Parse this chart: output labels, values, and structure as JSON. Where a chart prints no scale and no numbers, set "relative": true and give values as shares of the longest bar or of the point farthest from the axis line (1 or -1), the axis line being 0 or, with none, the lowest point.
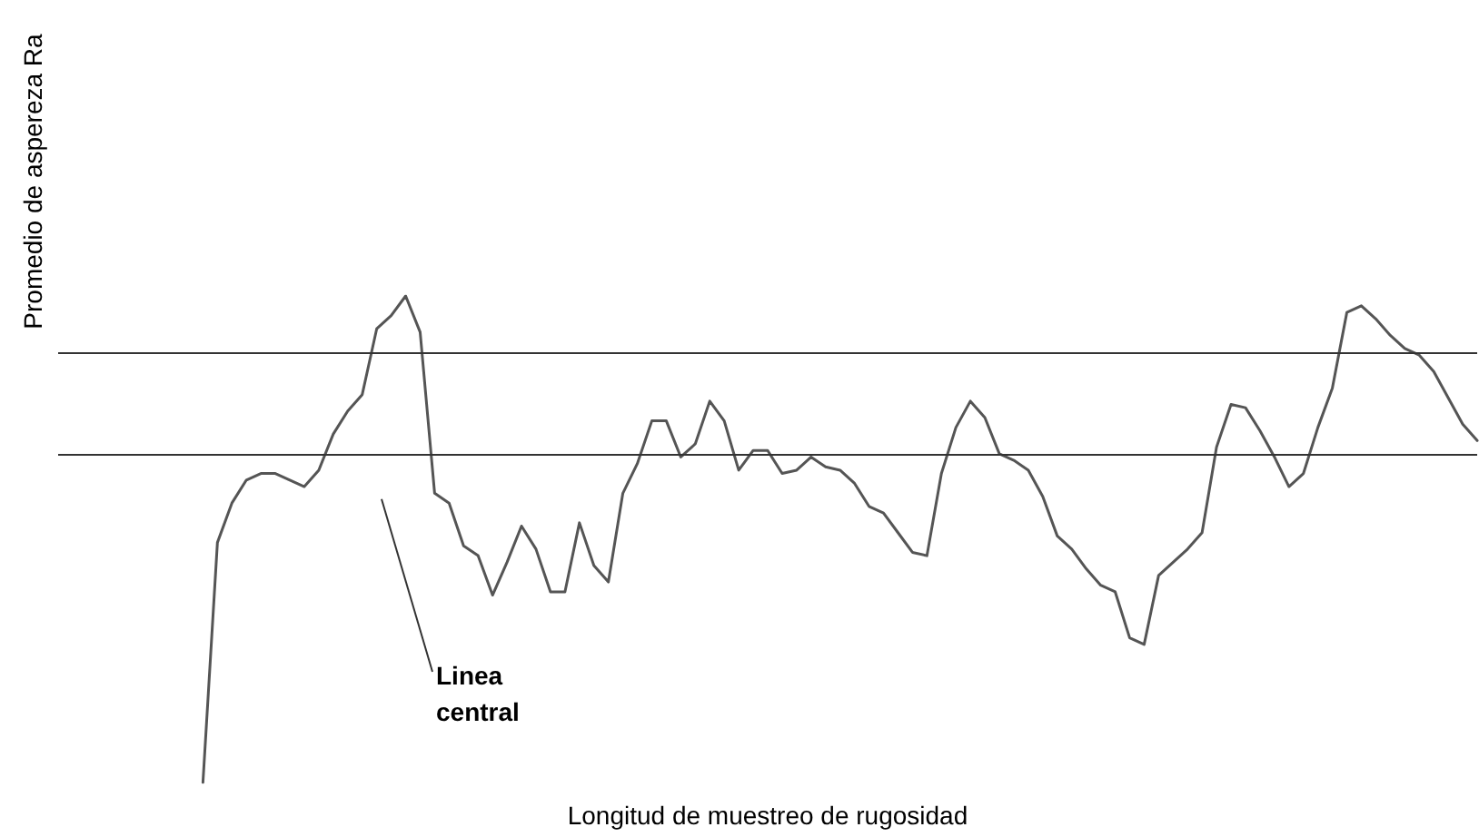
{
  "chart_data": {
    "type": "line",
    "relative": true,
    "xlabel": "Longitud de muestreo de rugosidad",
    "ylabel": "Promedio de aspereza Ra",
    "tick_labels": false,
    "annotations": [
      "Linea central"
    ],
    "line_style": "solid",
    "color": "#555555",
    "categories": [
      null,
      null,
      null,
      null,
      null,
      null,
      null,
      null,
      null,
      null,
      null,
      null,
      null,
      null,
      null,
      null,
      null,
      null,
      null,
      null,
      null,
      null,
      null,
      null,
      null,
      null,
      null,
      null,
      null,
      null,
      null,
      null,
      null,
      null,
      null,
      null,
      null,
      null,
      null,
      null,
      null,
      null,
      null,
      null,
      null,
      null,
      null,
      null,
      null,
      null,
      null,
      null,
      null,
      null,
      null,
      null,
      null,
      null,
      null,
      null,
      null,
      null,
      null,
      null,
      null,
      null,
      null,
      null,
      null,
      null,
      null,
      null,
      null,
      null,
      null,
      null,
      null,
      null,
      null,
      null,
      null,
      null,
      null,
      null,
      null,
      null,
      null,
      null,
      null,
      null,
      null,
      null,
      null,
      null,
      null,
      null,
      null,
      null,
      null
    ],
    "values": [
      null,
      null,
      null,
      null,
      null,
      null,
      null,
      null,
      null,
      null,
      -1,
      -0.27,
      -0.15,
      -0.08,
      -0.06,
      -0.06,
      -0.08,
      -0.1,
      -0.05,
      0.06,
      0.13,
      0.18,
      0.38,
      0.42,
      0.48,
      0.37,
      -0.12,
      -0.15,
      -0.28,
      -0.31,
      -0.43,
      -0.33,
      -0.22,
      -0.29,
      -0.42,
      -0.42,
      -0.21,
      -0.34,
      -0.39,
      -0.12,
      -0.03,
      0.1,
      0.1,
      -0.01,
      0.03,
      0.16,
      0.1,
      -0.05,
      0.01,
      0.01,
      -0.06,
      -0.05,
      -0.01,
      -0.04,
      -0.05,
      -0.09,
      -0.16,
      -0.18,
      -0.24,
      -0.3,
      -0.31,
      -0.06,
      0.08,
      0.16,
      0.11,
      0,
      -0.02,
      -0.05,
      -0.13,
      -0.25,
      -0.29,
      -0.35,
      -0.4,
      -0.42,
      -0.56,
      -0.58,
      -0.37,
      -0.33,
      -0.29,
      -0.24,
      0.02,
      0.15,
      0.14,
      0.07,
      -0.01,
      -0.1,
      -0.06,
      0.08,
      0.2,
      0.43,
      0.45,
      0.41,
      0.36,
      0.32,
      0.3,
      0.25,
      0.17,
      0.09,
      0.04
    ],
    "ref_lines": [
      {
        "axis": "y",
        "value": 0,
        "color": "#333333"
      },
      {
        "axis": "y",
        "value": 0.31,
        "label": null,
        "color": "#333333"
      }
    ]
  }
}
